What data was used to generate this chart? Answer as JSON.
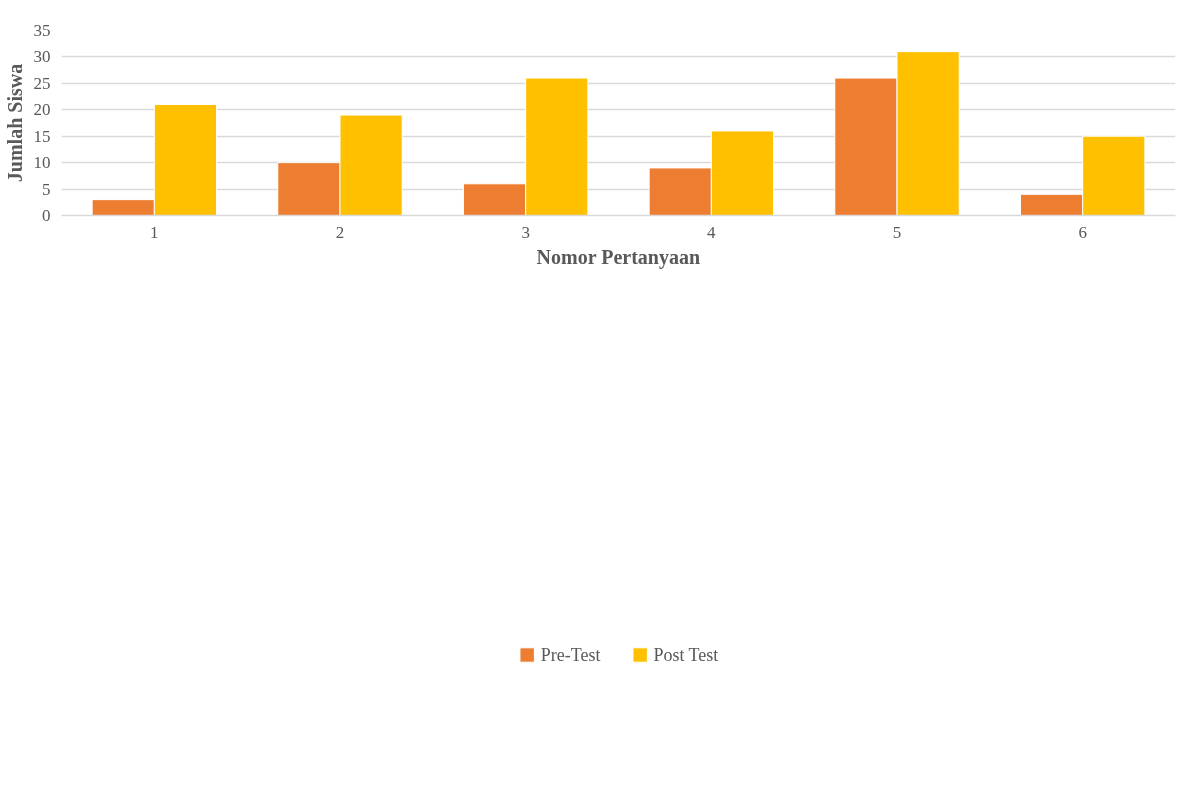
{
  "chart_data": {
    "type": "bar",
    "xlabel": "Nomor Pertanyaan",
    "ylabel": "Jumlah Siswa",
    "categories": [
      "1",
      "2",
      "3",
      "4",
      "5",
      "6"
    ],
    "series": [
      {
        "name": "Pre-Test",
        "color": "#ed7d31",
        "values": [
          3,
          10,
          6,
          9,
          26,
          4
        ]
      },
      {
        "name": "Post Test",
        "color": "#ffc000",
        "values": [
          21,
          19,
          26,
          16,
          31,
          15
        ]
      }
    ],
    "ylim": [
      0,
      35
    ],
    "yticks": [
      0,
      5,
      10,
      15,
      20,
      25,
      30,
      35
    ],
    "grid": "y",
    "legend": "bottom"
  }
}
